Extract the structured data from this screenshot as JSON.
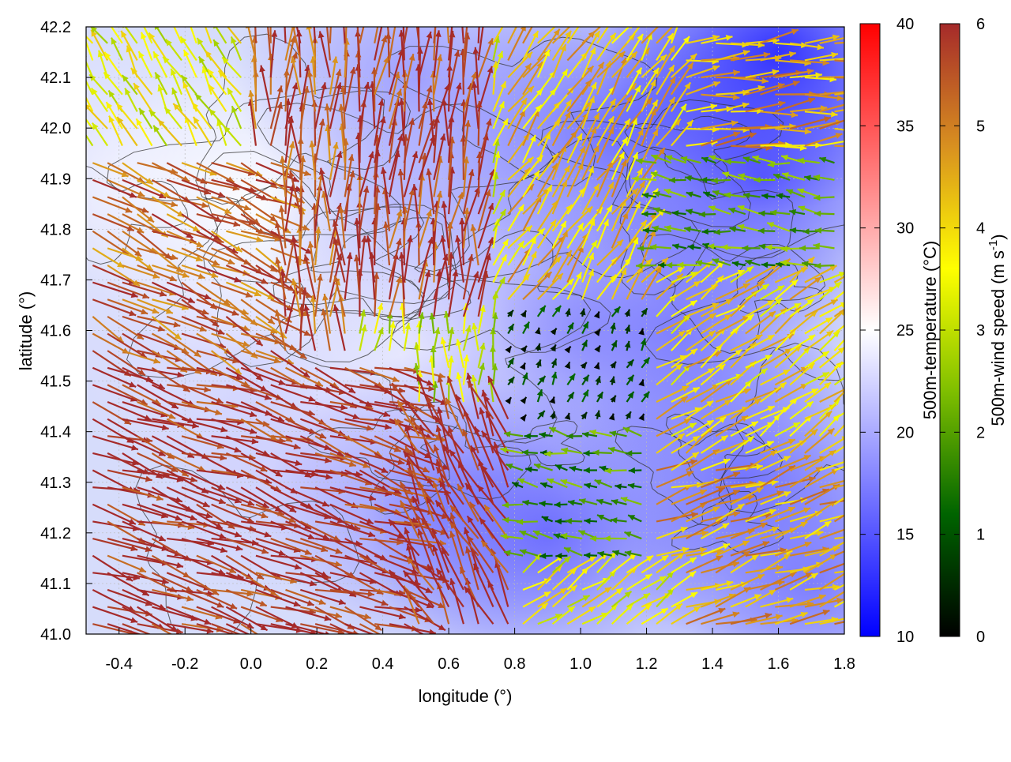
{
  "chart_data": {
    "type": "heatmap",
    "overlay": "vector field (wind arrows) with contour lines",
    "xlabel": "longitude (°)",
    "ylabel": "latitude (°)",
    "xlim": [
      -0.5,
      1.8
    ],
    "ylim": [
      41.0,
      42.2
    ],
    "x_ticks": [
      "-0.4",
      "-0.2",
      "0.0",
      "0.2",
      "0.4",
      "0.6",
      "0.8",
      "1.0",
      "1.2",
      "1.4",
      "1.6",
      "1.8"
    ],
    "y_ticks": [
      "41.0",
      "41.1",
      "41.2",
      "41.3",
      "41.4",
      "41.5",
      "41.6",
      "41.7",
      "41.8",
      "41.9",
      "42.0",
      "42.1",
      "42.2"
    ],
    "grid": true,
    "colorbars": [
      {
        "label": "500m-temperature (°C)",
        "range": [
          10,
          40
        ],
        "ticks": [
          "10",
          "15",
          "20",
          "25",
          "30",
          "35",
          "40"
        ],
        "colors": [
          "#0000ff",
          "#ffffff",
          "#ff0000"
        ]
      },
      {
        "label": "500m-wind speed (m s-1)",
        "label_main": "500m-wind speed (m s",
        "label_sup": "-1",
        "label_end": ")",
        "range": [
          0,
          6
        ],
        "ticks": [
          "0",
          "1",
          "2",
          "3",
          "4",
          "5",
          "6"
        ],
        "colors": [
          "#000000",
          "#006400",
          "#7fbf00",
          "#ffff00",
          "#d89020",
          "#a52a2a"
        ]
      }
    ],
    "temperature_regions": [
      {
        "lon": -0.4,
        "lat": 41.9,
        "temp": 24
      },
      {
        "lon": -0.1,
        "lat": 41.6,
        "temp": 23
      },
      {
        "lon": 0.0,
        "lat": 41.85,
        "temp": 25
      },
      {
        "lon": 0.2,
        "lat": 41.35,
        "temp": 22
      },
      {
        "lon": 0.5,
        "lat": 42.1,
        "temp": 19
      },
      {
        "lon": 0.6,
        "lat": 41.8,
        "temp": 20
      },
      {
        "lon": 0.55,
        "lat": 41.55,
        "temp": 24
      },
      {
        "lon": 0.6,
        "lat": 41.25,
        "temp": 18
      },
      {
        "lon": 0.9,
        "lat": 41.2,
        "temp": 16
      },
      {
        "lon": 1.0,
        "lat": 41.6,
        "temp": 19
      },
      {
        "lon": 1.1,
        "lat": 42.0,
        "temp": 16
      },
      {
        "lon": 1.3,
        "lat": 41.6,
        "temp": 17
      },
      {
        "lon": 1.5,
        "lat": 41.3,
        "temp": 16
      },
      {
        "lon": 1.55,
        "lat": 41.9,
        "temp": 15
      },
      {
        "lon": 1.6,
        "lat": 42.15,
        "temp": 12
      },
      {
        "lon": 1.7,
        "lat": 41.1,
        "temp": 17
      }
    ],
    "wind_regions": [
      {
        "lon_range": [
          -0.5,
          0.5
        ],
        "lat_range": [
          41.0,
          41.55
        ],
        "u": 6.0,
        "v": -2.0,
        "speed": 6.0
      },
      {
        "lon_range": [
          -0.5,
          0.1
        ],
        "lat_range": [
          41.55,
          41.95
        ],
        "u": 4.5,
        "v": -2.2,
        "speed": 5.3
      },
      {
        "lon_range": [
          -0.5,
          0.0
        ],
        "lat_range": [
          41.95,
          42.2
        ],
        "u": -0.6,
        "v": 1.0,
        "speed": 3.5
      },
      {
        "lon_range": [
          0.0,
          0.3
        ],
        "lat_range": [
          41.55,
          42.2
        ],
        "u": 0.0,
        "v": 3.2,
        "speed": 5.5
      },
      {
        "lon_range": [
          0.3,
          0.7
        ],
        "lat_range": [
          41.6,
          42.2
        ],
        "u": 0.3,
        "v": 3.0,
        "speed": 5.8
      },
      {
        "lon_range": [
          0.4,
          0.75
        ],
        "lat_range": [
          41.45,
          41.6
        ],
        "u": 0.0,
        "v": 1.0,
        "speed": 3.0
      },
      {
        "lon_range": [
          0.4,
          0.8
        ],
        "lat_range": [
          41.0,
          41.45
        ],
        "u": -1.5,
        "v": 3.0,
        "speed": 5.9
      },
      {
        "lon_range": [
          0.75,
          1.2
        ],
        "lat_range": [
          41.4,
          41.65
        ],
        "u": 0.1,
        "v": 0.2,
        "speed": 0.5
      },
      {
        "lon_range": [
          0.8,
          1.2
        ],
        "lat_range": [
          41.15,
          41.4
        ],
        "u": -1.0,
        "v": 0.2,
        "speed": 1.8
      },
      {
        "lon_range": [
          0.8,
          1.3
        ],
        "lat_range": [
          41.0,
          41.15
        ],
        "u": 1.5,
        "v": 1.0,
        "speed": 3.5
      },
      {
        "lon_range": [
          1.2,
          1.8
        ],
        "lat_range": [
          41.0,
          41.35
        ],
        "u": 4.0,
        "v": 1.4,
        "speed": 4.5
      },
      {
        "lon_range": [
          1.2,
          1.8
        ],
        "lat_range": [
          41.35,
          41.7
        ],
        "u": 1.5,
        "v": 1.0,
        "speed": 4.0
      },
      {
        "lon_range": [
          1.2,
          1.8
        ],
        "lat_range": [
          41.7,
          41.95
        ],
        "u": -2.0,
        "v": 0.3,
        "speed": 2.0
      },
      {
        "lon_range": [
          0.75,
          1.3
        ],
        "lat_range": [
          41.65,
          42.2
        ],
        "u": 1.0,
        "v": 1.5,
        "speed": 4.2
      },
      {
        "lon_range": [
          1.3,
          1.8
        ],
        "lat_range": [
          41.95,
          42.2
        ],
        "u": 3.5,
        "v": 0.4,
        "speed": 4.5
      }
    ]
  }
}
